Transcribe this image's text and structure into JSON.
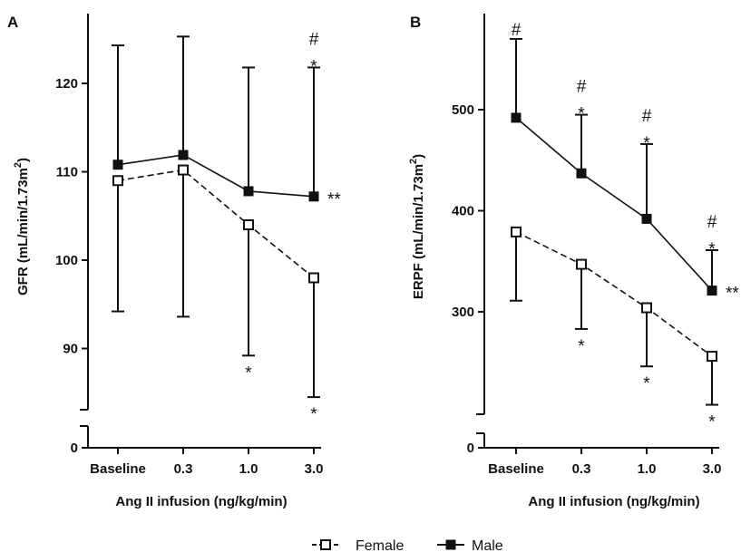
{
  "chart_data": [
    {
      "panel": "A",
      "type": "line",
      "ylabel": "GFR (mL/min/1.73m",
      "ylabel_sup": "2",
      "ylabel_close": ")",
      "xlabel": "Ang II infusion (ng/kg/min)",
      "categories": [
        "Baseline",
        "0.3",
        "1.0",
        "3.0"
      ],
      "y_ticks": [
        "0",
        "90",
        "100",
        "110",
        "120"
      ],
      "y_tick_values": [
        0,
        90,
        100,
        110,
        120
      ],
      "ylim": [
        0,
        127
      ],
      "broken_axis": true,
      "series": [
        {
          "name": "Male",
          "values": [
            110.8,
            111.9,
            107.8,
            107.2
          ],
          "error_plus": [
            13.5,
            13.4,
            14.0,
            14.6
          ],
          "error_minus": [
            0,
            0,
            0,
            0
          ],
          "marker": "filled-square",
          "line": "solid"
        },
        {
          "name": "Female",
          "values": [
            109.0,
            110.2,
            104.0,
            98.0
          ],
          "error_plus": [
            0,
            0,
            0,
            0
          ],
          "error_minus": [
            14.8,
            16.6,
            14.8,
            13.5
          ],
          "marker": "open-square",
          "line": "dashed"
        }
      ],
      "annotations": [
        {
          "text": "*",
          "category": "1.0",
          "series": "Female",
          "position": "below"
        },
        {
          "text": "*",
          "category": "3.0",
          "series": "Female",
          "position": "below"
        },
        {
          "text": "*",
          "category": "3.0",
          "series": "Male",
          "position": "above"
        },
        {
          "text": "#",
          "category": "3.0",
          "series": "Male",
          "position": "above"
        },
        {
          "text": "**",
          "category": "3.0",
          "series": "Male",
          "position": "right"
        }
      ]
    },
    {
      "panel": "B",
      "type": "line",
      "ylabel": "ERPF (mL/min/1.73m",
      "ylabel_sup": "2",
      "ylabel_close": ")",
      "xlabel": "Ang II infusion (ng/kg/min)",
      "categories": [
        "Baseline",
        "0.3",
        "1.0",
        "3.0"
      ],
      "y_ticks": [
        "0",
        "300",
        "400",
        "500"
      ],
      "y_tick_values": [
        0,
        300,
        400,
        500
      ],
      "ylim": [
        0,
        570
      ],
      "broken_axis": true,
      "series": [
        {
          "name": "Male",
          "values": [
            492,
            437,
            392,
            321
          ],
          "error_plus": [
            78,
            58,
            74,
            40
          ],
          "error_minus": [
            0,
            0,
            0,
            0
          ],
          "marker": "filled-square",
          "line": "solid"
        },
        {
          "name": "Female",
          "values": [
            379,
            347,
            304,
            256
          ],
          "error_plus": [
            0,
            0,
            0,
            0
          ],
          "error_minus": [
            68,
            64,
            58,
            48
          ],
          "marker": "open-square",
          "line": "dashed"
        }
      ],
      "annotations": [
        {
          "text": "#",
          "category": "Baseline",
          "series": "Male",
          "position": "above"
        },
        {
          "text": "*",
          "category": "0.3",
          "series": "Male",
          "position": "above"
        },
        {
          "text": "#",
          "category": "0.3",
          "series": "Male",
          "position": "above"
        },
        {
          "text": "*",
          "category": "1.0",
          "series": "Male",
          "position": "above"
        },
        {
          "text": "#",
          "category": "1.0",
          "series": "Male",
          "position": "above"
        },
        {
          "text": "*",
          "category": "3.0",
          "series": "Male",
          "position": "above"
        },
        {
          "text": "#",
          "category": "3.0",
          "series": "Male",
          "position": "above"
        },
        {
          "text": "**",
          "category": "3.0",
          "series": "Male",
          "position": "right"
        },
        {
          "text": "*",
          "category": "0.3",
          "series": "Female",
          "position": "below"
        },
        {
          "text": "*",
          "category": "1.0",
          "series": "Female",
          "position": "below"
        },
        {
          "text": "*",
          "category": "3.0",
          "series": "Female",
          "position": "below"
        }
      ]
    }
  ],
  "legend": [
    {
      "label": "Female",
      "marker": "open-square",
      "line": "dashed"
    },
    {
      "label": "Male",
      "marker": "filled-square",
      "line": "solid"
    }
  ],
  "colors": {
    "ink": "#111111",
    "background": "#ffffff"
  }
}
